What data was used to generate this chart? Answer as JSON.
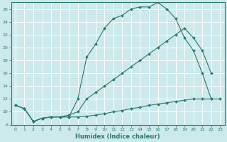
{
  "xlabel": "Humidex (Indice chaleur)",
  "background_color": "#cce9ec",
  "grid_color": "#b0d8dc",
  "line_color": "#2a7a6a",
  "xlim": [
    -0.5,
    23.5
  ],
  "ylim": [
    8,
    27
  ],
  "xticks": [
    0,
    1,
    2,
    3,
    4,
    5,
    6,
    7,
    8,
    9,
    10,
    11,
    12,
    13,
    14,
    15,
    16,
    17,
    18,
    19,
    20,
    21,
    22,
    23
  ],
  "yticks": [
    8,
    10,
    12,
    14,
    16,
    18,
    20,
    22,
    24,
    26
  ],
  "curve1_x": [
    0,
    1,
    2,
    3,
    4,
    5,
    6,
    7,
    8,
    9,
    10,
    11,
    12,
    13,
    14,
    15,
    16,
    17,
    18,
    19,
    20,
    21,
    22,
    23
  ],
  "curve1_y": [
    11.0,
    10.5,
    8.5,
    9.0,
    9.2,
    9.2,
    9.2,
    9.2,
    9.3,
    9.5,
    9.7,
    10.0,
    10.2,
    10.5,
    10.7,
    11.0,
    11.2,
    11.4,
    11.6,
    11.8,
    12.0,
    12.0,
    12.0,
    12.0
  ],
  "curve2_x": [
    0,
    1,
    2,
    3,
    4,
    5,
    6,
    7,
    8,
    9,
    10,
    11,
    12,
    13,
    14,
    15,
    16,
    17,
    18,
    19,
    20,
    21,
    22
  ],
  "curve2_y": [
    11.0,
    10.5,
    8.5,
    9.0,
    9.2,
    9.2,
    9.2,
    12.0,
    18.5,
    20.5,
    23.0,
    24.5,
    25.0,
    26.0,
    26.3,
    26.3,
    27.0,
    26.0,
    24.5,
    21.5,
    19.5,
    16.0,
    12.0
  ],
  "curve3_x": [
    0,
    1,
    2,
    3,
    4,
    5,
    6,
    7,
    8,
    9,
    10,
    11,
    12,
    13,
    14,
    15,
    16,
    17,
    18,
    19,
    20,
    21,
    22
  ],
  "curve3_y": [
    11.0,
    10.5,
    8.5,
    9.0,
    9.2,
    9.2,
    9.5,
    10.0,
    12.0,
    13.0,
    14.0,
    15.0,
    16.0,
    17.0,
    18.0,
    19.0,
    20.0,
    21.0,
    22.0,
    23.0,
    21.5,
    19.5,
    16.0
  ]
}
